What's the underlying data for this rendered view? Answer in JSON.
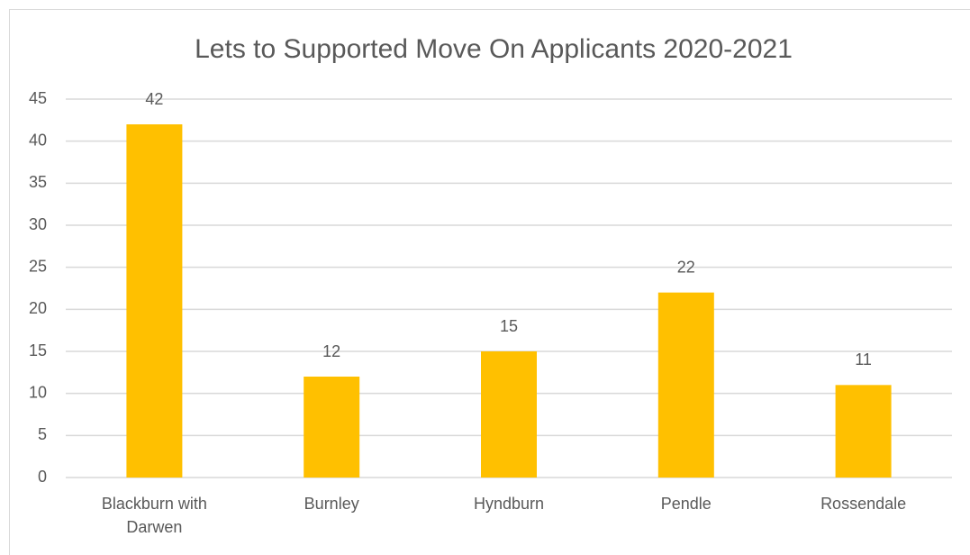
{
  "chart_data": {
    "type": "bar",
    "title": "Lets to Supported Move On Applicants 2020-2021",
    "categories": [
      "Blackburn with Darwen",
      "Burnley",
      "Hyndburn",
      "Pendle",
      "Rossendale"
    ],
    "values": [
      42,
      12,
      15,
      22,
      11
    ],
    "color": "#ffc000",
    "ylim": [
      0,
      45
    ],
    "yticks": [
      0,
      5,
      10,
      15,
      20,
      25,
      30,
      35,
      40,
      45
    ],
    "grid": true
  }
}
